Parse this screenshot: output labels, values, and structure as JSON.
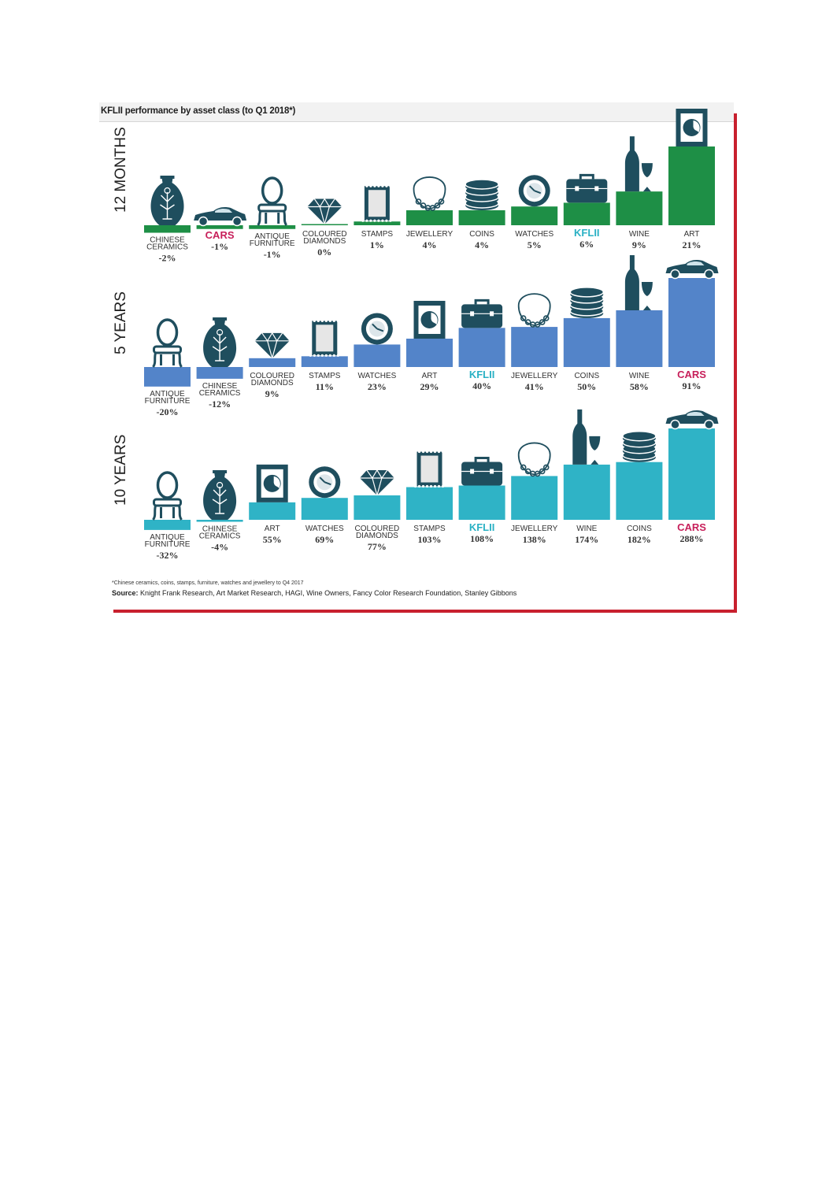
{
  "title": "KFLII performance by asset class (to Q1 2018*)",
  "footnote": "*Chinese ceramics, coins, stamps, furniture, watches and jewellery to Q4 2017",
  "source_label": "Source:",
  "source_text": "Knight Frank Research, Art Market Research, HAGI, Wine Owners, Fancy Color Research Foundation, Stanley Gibbons",
  "colors": {
    "icon": "#1f4e5e",
    "highlight_kflii": "#2ab1c4",
    "highlight_cars": "#c71f5a",
    "label": "#333333"
  },
  "chart_data": [
    {
      "type": "bar",
      "panel_label": "12 MONTHS",
      "color": "#1e8f46",
      "unit": "%",
      "categories": [
        {
          "label": "CHINESE CERAMICS",
          "value": -2,
          "icon": "vase-icon"
        },
        {
          "label": "CARS",
          "value": -1,
          "icon": "car-icon",
          "highlight": "cars"
        },
        {
          "label": "ANTIQUE FURNITURE",
          "value": -1,
          "icon": "chair-icon"
        },
        {
          "label": "COLOURED DIAMONDS",
          "value": 0,
          "icon": "diamond-icon"
        },
        {
          "label": "STAMPS",
          "value": 1,
          "icon": "stamp-icon"
        },
        {
          "label": "JEWELLERY",
          "value": 4,
          "icon": "necklace-icon"
        },
        {
          "label": "COINS",
          "value": 4,
          "icon": "coins-icon"
        },
        {
          "label": "WATCHES",
          "value": 5,
          "icon": "watch-icon"
        },
        {
          "label": "KFLII",
          "value": 6,
          "icon": "briefcase-icon",
          "highlight": "kflii"
        },
        {
          "label": "WINE",
          "value": 9,
          "icon": "wine-icon"
        },
        {
          "label": "ART",
          "value": 21,
          "icon": "portrait-icon"
        }
      ]
    },
    {
      "type": "bar",
      "panel_label": "5 YEARS",
      "color": "#5384c9",
      "unit": "%",
      "categories": [
        {
          "label": "ANTIQUE FURNITURE",
          "value": -20,
          "icon": "chair-icon"
        },
        {
          "label": "CHINESE CERAMICS",
          "value": -12,
          "icon": "vase-icon"
        },
        {
          "label": "COLOURED DIAMONDS",
          "value": 9,
          "icon": "diamond-icon"
        },
        {
          "label": "STAMPS",
          "value": 11,
          "icon": "stamp-icon"
        },
        {
          "label": "WATCHES",
          "value": 23,
          "icon": "watch-icon"
        },
        {
          "label": "ART",
          "value": 29,
          "icon": "portrait-icon"
        },
        {
          "label": "KFLII",
          "value": 40,
          "icon": "briefcase-icon",
          "highlight": "kflii"
        },
        {
          "label": "JEWELLERY",
          "value": 41,
          "icon": "necklace-icon"
        },
        {
          "label": "COINS",
          "value": 50,
          "icon": "coins-icon"
        },
        {
          "label": "WINE",
          "value": 58,
          "icon": "wine-icon"
        },
        {
          "label": "CARS",
          "value": 91,
          "icon": "car-icon",
          "highlight": "cars"
        }
      ]
    },
    {
      "type": "bar",
      "panel_label": "10 YEARS",
      "color": "#2fb3c6",
      "unit": "%",
      "categories": [
        {
          "label": "ANTIQUE FURNITURE",
          "value": -32,
          "icon": "chair-icon"
        },
        {
          "label": "CHINESE CERAMICS",
          "value": -4,
          "icon": "vase-icon"
        },
        {
          "label": "ART",
          "value": 55,
          "icon": "portrait-icon"
        },
        {
          "label": "WATCHES",
          "value": 69,
          "icon": "watch-icon"
        },
        {
          "label": "COLOURED DIAMONDS",
          "value": 77,
          "icon": "diamond-icon"
        },
        {
          "label": "STAMPS",
          "value": 103,
          "icon": "stamp-icon"
        },
        {
          "label": "KFLII",
          "value": 108,
          "icon": "briefcase-icon",
          "highlight": "kflii"
        },
        {
          "label": "JEWELLERY",
          "value": 138,
          "icon": "necklace-icon"
        },
        {
          "label": "WINE",
          "value": 174,
          "icon": "wine-icon"
        },
        {
          "label": "COINS",
          "value": 182,
          "icon": "coins-icon"
        },
        {
          "label": "CARS",
          "value": 288,
          "icon": "car-icon",
          "highlight": "cars"
        }
      ]
    }
  ]
}
